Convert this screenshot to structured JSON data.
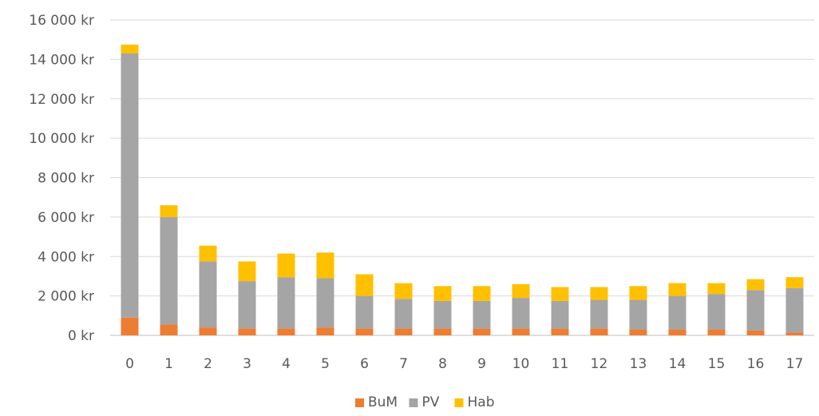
{
  "chart_data": {
    "type": "bar",
    "stacked": true,
    "categories": [
      "0",
      "1",
      "2",
      "3",
      "4",
      "5",
      "6",
      "7",
      "8",
      "9",
      "10",
      "11",
      "12",
      "13",
      "14",
      "15",
      "16",
      "17"
    ],
    "series": [
      {
        "name": "BuM",
        "color": "#ed7d31",
        "values": [
          900,
          550,
          400,
          350,
          350,
          400,
          350,
          350,
          350,
          350,
          350,
          350,
          350,
          300,
          300,
          300,
          250,
          150
        ]
      },
      {
        "name": "PV",
        "color": "#a5a5a5",
        "values": [
          13400,
          5450,
          3350,
          2400,
          2600,
          2500,
          1650,
          1500,
          1400,
          1400,
          1550,
          1400,
          1450,
          1500,
          1700,
          1800,
          2050,
          2250
        ]
      },
      {
        "name": "Hab",
        "color": "#ffc000",
        "values": [
          450,
          600,
          800,
          1000,
          1200,
          1300,
          1100,
          800,
          750,
          750,
          700,
          700,
          650,
          700,
          650,
          550,
          550,
          550
        ]
      }
    ],
    "yticks": [
      "0 kr",
      "2 000 kr",
      "4 000 kr",
      "6 000 kr",
      "8 000 kr",
      "10 000 kr",
      "12 000 kr",
      "14 000 kr",
      "16 000 kr"
    ],
    "ylim": [
      0,
      16000
    ],
    "grid": true,
    "legend_position": "bottom-center"
  }
}
